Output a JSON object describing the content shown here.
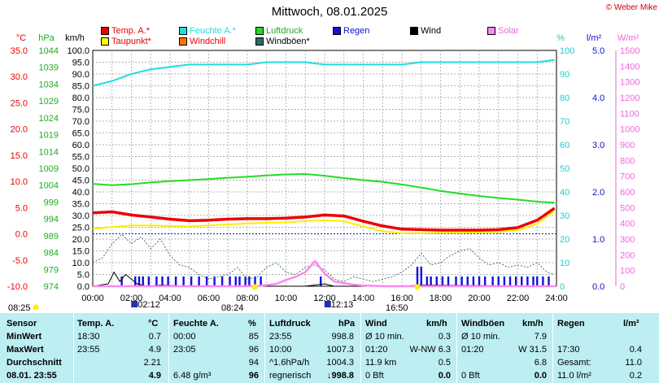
{
  "title": "Mittwoch, 08.01.2025",
  "brand": "© Weber Mike",
  "legend": [
    {
      "label": "Temp. A.*",
      "color": "#ee0000",
      "text_color": "#ee0000"
    },
    {
      "label": "Feuchte A.*",
      "color": "#22dddd",
      "text_color": "#22dddd"
    },
    {
      "label": "Luftdruck",
      "color": "#22dd22",
      "text_color": "#22aa22"
    },
    {
      "label": "Regen",
      "color": "#1111dd",
      "text_color": "#1111cc"
    },
    {
      "label": "Wind",
      "color": "#000000",
      "text_color": "#000000"
    },
    {
      "label": "Solar",
      "color": "#ff88ee",
      "text_color": "#ee66dd"
    },
    {
      "label": "Taupunkt*",
      "color": "#ffff00",
      "text_color": "#ee0000"
    },
    {
      "label": "Windchill",
      "color": "#ff7700",
      "text_color": "#ee0000"
    },
    {
      "label": "Windböen*",
      "color": "#336666",
      "text_color": "#000000"
    }
  ],
  "axis_units": {
    "temp": "°C",
    "pressure": "hPa",
    "wind": "km/h",
    "humidity": "%",
    "rain": "l/m²",
    "solar": "W/m²"
  },
  "chart_data": {
    "type": "line",
    "x_ticks": [
      "00:00",
      "02:00",
      "04:00",
      "06:00",
      "08:00",
      "10:00",
      "12:00",
      "14:00",
      "16:00",
      "18:00",
      "20:00",
      "22:00",
      "24:00"
    ],
    "temp_axis": {
      "range": [
        -10,
        35
      ],
      "ticks": [
        "35.0",
        "30.0",
        "25.0",
        "20.0",
        "15.0",
        "10.0",
        "5.0",
        "0.0",
        "-5.0",
        "-10.0"
      ]
    },
    "pressure_axis": {
      "range": [
        974,
        1044
      ],
      "ticks": [
        "1044",
        "1039",
        "1034",
        "1029",
        "1024",
        "1019",
        "1014",
        "1009",
        "1004",
        "999",
        "994",
        "989",
        "984",
        "979",
        "974"
      ]
    },
    "wind_axis": {
      "range": [
        0,
        100
      ],
      "ticks": [
        "100.0",
        "95.0",
        "90.0",
        "85.0",
        "80.0",
        "75.0",
        "70.0",
        "65.0",
        "60.0",
        "55.0",
        "50.0",
        "45.0",
        "40.0",
        "35.0",
        "30.0",
        "25.0",
        "20.0",
        "15.0",
        "10.0",
        "5.0",
        "0.0"
      ]
    },
    "humidity_axis": {
      "range": [
        0,
        100
      ],
      "ticks": [
        "100",
        "90",
        "80",
        "70",
        "60",
        "50",
        "40",
        "30",
        "20",
        "10",
        "0"
      ]
    },
    "rain_axis": {
      "range": [
        0,
        5
      ],
      "ticks": [
        "5.0",
        "4.0",
        "3.0",
        "2.0",
        "1.0",
        "0.0"
      ]
    },
    "solar_axis": {
      "range": [
        0,
        1500
      ],
      "ticks": [
        "1500",
        "1400",
        "1300",
        "1200",
        "1100",
        "1000",
        "900",
        "800",
        "700",
        "600",
        "500",
        "400",
        "300",
        "200",
        "100",
        "0"
      ]
    },
    "series": [
      {
        "name": "Temp. A.*",
        "axis": "temp",
        "points": [
          [
            0,
            4.0
          ],
          [
            1,
            4.2
          ],
          [
            2,
            3.6
          ],
          [
            3,
            3.2
          ],
          [
            4,
            2.8
          ],
          [
            5,
            2.5
          ],
          [
            6,
            2.6
          ],
          [
            7,
            2.8
          ],
          [
            8,
            2.9
          ],
          [
            9,
            2.9
          ],
          [
            10,
            3.0
          ],
          [
            11,
            3.2
          ],
          [
            12,
            3.6
          ],
          [
            13,
            3.4
          ],
          [
            14,
            2.4
          ],
          [
            15,
            1.5
          ],
          [
            16,
            0.9
          ],
          [
            17,
            0.8
          ],
          [
            18,
            0.7
          ],
          [
            19,
            0.7
          ],
          [
            20,
            0.7
          ],
          [
            21,
            0.8
          ],
          [
            22,
            1.2
          ],
          [
            23,
            2.6
          ],
          [
            23.9,
            4.9
          ]
        ]
      },
      {
        "name": "Taupunkt*",
        "axis": "temp",
        "points": [
          [
            0,
            1.0
          ],
          [
            1,
            1.3
          ],
          [
            2,
            1.6
          ],
          [
            3,
            1.6
          ],
          [
            4,
            1.5
          ],
          [
            5,
            1.4
          ],
          [
            6,
            1.6
          ],
          [
            7,
            1.8
          ],
          [
            8,
            2.0
          ],
          [
            9,
            2.1
          ],
          [
            10,
            2.2
          ],
          [
            11,
            2.4
          ],
          [
            12,
            2.6
          ],
          [
            13,
            2.4
          ],
          [
            14,
            1.4
          ],
          [
            15,
            0.5
          ],
          [
            16,
            0.1
          ],
          [
            17,
            0.1
          ],
          [
            18,
            0.2
          ],
          [
            19,
            0.2
          ],
          [
            20,
            0.3
          ],
          [
            21,
            0.4
          ],
          [
            22,
            0.7
          ],
          [
            23,
            1.9
          ],
          [
            23.9,
            4.4
          ]
        ]
      },
      {
        "name": "Feuchte A.*",
        "axis": "humidity",
        "points": [
          [
            0,
            85
          ],
          [
            1,
            87
          ],
          [
            2,
            90
          ],
          [
            3,
            92
          ],
          [
            4,
            93
          ],
          [
            5,
            94
          ],
          [
            6,
            94
          ],
          [
            7,
            94
          ],
          [
            8,
            94
          ],
          [
            9,
            95
          ],
          [
            10,
            95
          ],
          [
            11,
            95
          ],
          [
            12,
            94
          ],
          [
            13,
            94
          ],
          [
            14,
            94
          ],
          [
            15,
            94
          ],
          [
            16,
            94
          ],
          [
            17,
            95
          ],
          [
            18,
            95
          ],
          [
            19,
            95
          ],
          [
            20,
            95
          ],
          [
            21,
            95
          ],
          [
            22,
            95
          ],
          [
            23,
            95
          ],
          [
            23.9,
            96
          ]
        ]
      },
      {
        "name": "Luftdruck",
        "axis": "pressure",
        "points": [
          [
            0,
            1004.4
          ],
          [
            1,
            1004.0
          ],
          [
            2,
            1004.3
          ],
          [
            3,
            1004.8
          ],
          [
            4,
            1005.2
          ],
          [
            5,
            1005.5
          ],
          [
            6,
            1005.8
          ],
          [
            7,
            1006.2
          ],
          [
            8,
            1006.5
          ],
          [
            9,
            1006.9
          ],
          [
            10,
            1007.2
          ],
          [
            11,
            1007.3
          ],
          [
            12,
            1006.8
          ],
          [
            13,
            1006.1
          ],
          [
            14,
            1005.5
          ],
          [
            15,
            1005.0
          ],
          [
            16,
            1004.2
          ],
          [
            17,
            1003.3
          ],
          [
            18,
            1002.3
          ],
          [
            19,
            1001.5
          ],
          [
            20,
            1000.8
          ],
          [
            21,
            1000.2
          ],
          [
            22,
            999.7
          ],
          [
            23,
            999.1
          ],
          [
            23.9,
            998.8
          ]
        ]
      },
      {
        "name": "Windböen*",
        "axis": "wind",
        "points": [
          [
            0,
            10
          ],
          [
            0.5,
            12
          ],
          [
            1,
            18
          ],
          [
            1.5,
            22
          ],
          [
            2,
            18
          ],
          [
            2.5,
            21
          ],
          [
            3,
            16
          ],
          [
            3.5,
            20
          ],
          [
            4,
            13
          ],
          [
            4.5,
            9
          ],
          [
            5,
            8
          ],
          [
            5.5,
            5
          ],
          [
            6,
            3
          ],
          [
            6.5,
            4
          ],
          [
            7,
            5
          ],
          [
            7.5,
            8
          ],
          [
            8,
            3
          ],
          [
            8.5,
            4
          ],
          [
            9,
            8
          ],
          [
            9.5,
            10
          ],
          [
            10,
            6
          ],
          [
            10.5,
            5
          ],
          [
            11,
            8
          ],
          [
            11.5,
            9
          ],
          [
            12,
            7
          ],
          [
            12.5,
            3
          ],
          [
            13,
            2
          ],
          [
            13.5,
            4
          ],
          [
            14,
            3
          ],
          [
            14.5,
            2
          ],
          [
            15,
            3
          ],
          [
            15.5,
            4
          ],
          [
            16,
            6
          ],
          [
            16.5,
            9
          ],
          [
            17,
            14
          ],
          [
            17.5,
            9
          ],
          [
            18,
            10
          ],
          [
            18.5,
            13
          ],
          [
            19,
            15
          ],
          [
            19.5,
            16
          ],
          [
            20,
            12
          ],
          [
            20.5,
            9
          ],
          [
            21,
            10
          ],
          [
            21.5,
            8
          ],
          [
            22,
            9
          ],
          [
            22.5,
            8
          ],
          [
            23,
            10
          ],
          [
            23.5,
            6
          ],
          [
            23.9,
            5
          ]
        ]
      },
      {
        "name": "Wind",
        "axis": "wind",
        "points": [
          [
            0,
            0
          ],
          [
            0.8,
            1
          ],
          [
            1.1,
            6
          ],
          [
            1.4,
            2
          ],
          [
            1.7,
            5
          ],
          [
            2,
            3
          ],
          [
            2.3,
            1
          ],
          [
            2.8,
            0
          ],
          [
            3.5,
            0.5
          ],
          [
            5,
            0
          ],
          [
            8,
            0
          ],
          [
            11,
            0
          ],
          [
            12,
            1
          ],
          [
            12.5,
            0
          ],
          [
            16,
            0
          ],
          [
            17,
            0.5
          ],
          [
            24,
            0
          ]
        ]
      },
      {
        "name": "Solar",
        "axis": "solar",
        "points": [
          [
            0,
            0
          ],
          [
            8.5,
            0
          ],
          [
            9.5,
            15
          ],
          [
            10,
            40
          ],
          [
            10.5,
            60
          ],
          [
            11,
            90
          ],
          [
            11.5,
            160
          ],
          [
            12,
            80
          ],
          [
            12.5,
            30
          ],
          [
            13,
            20
          ],
          [
            13.5,
            10
          ],
          [
            14,
            5
          ],
          [
            15,
            0
          ],
          [
            24,
            0
          ]
        ]
      }
    ],
    "rain_hours": [
      1.5,
      2.2,
      2.4,
      2.6,
      2.9,
      3.3,
      3.6,
      3.9,
      4.3,
      4.7,
      5.1,
      5.5,
      5.9,
      6.3,
      6.7,
      7.1,
      7.4,
      7.6,
      7.9,
      8.1,
      8.4,
      8.7,
      11.8,
      16.8,
      17.0,
      17.3,
      17.5,
      17.8,
      18.1,
      18.4,
      18.8,
      19.1,
      19.4,
      19.7,
      20.0,
      20.3,
      20.7,
      21.0,
      21.3,
      21.6,
      21.9,
      22.2,
      22.5,
      22.8,
      23.0,
      23.3,
      23.6
    ]
  },
  "sun_marks": [
    {
      "label": "08:25",
      "kind": "sunrise"
    },
    {
      "label": "02:12",
      "kind": "moon"
    },
    {
      "label": "08:24",
      "kind": "sunrise"
    },
    {
      "label": "12:13",
      "kind": "moon"
    },
    {
      "label": "16:50",
      "kind": "sunset"
    }
  ],
  "table": {
    "header": [
      "Sensor",
      "Temp. A.",
      "°C",
      "Feuchte A.",
      "%",
      "Luftdruck",
      "hPa",
      "Wind",
      "km/h",
      "Windböen",
      "km/h",
      "Regen",
      "l/m²"
    ],
    "rows": [
      {
        "label": "MinWert",
        "temp_time": "18:30",
        "temp": "0.7",
        "hum_time": "00:00",
        "hum": "85",
        "press_time": "23:55",
        "press": "998.8",
        "wind_label": "Ø 10 min.",
        "wind": "0.3",
        "gust_label": "Ø 10 min.",
        "gust": "7.9",
        "rain_label": "",
        "rain": ""
      },
      {
        "label": "MaxWert",
        "temp_time": "23:55",
        "temp": "4.9",
        "hum_time": "23:05",
        "hum": "96",
        "press_time": "10:00",
        "press": "1007.3",
        "wind_label": "01:20",
        "wind": "W-NW 6.3",
        "gust_label": "01:20",
        "gust": "W 31.5",
        "rain_label": "17:30",
        "rain": "0.4"
      },
      {
        "label": "Durchschnitt",
        "temp_time": "",
        "temp": "2.21",
        "hum_time": "",
        "hum": "94",
        "press_time": "^1.6hPa/h",
        "press": "1004.3",
        "wind_label": "11.9 km",
        "wind": "0.5",
        "gust_label": "",
        "gust": "6.8",
        "rain_label": "Gesamt:",
        "rain": "11.0"
      },
      {
        "label": "08.01. 23:55",
        "temp_time": "",
        "temp": "4.9",
        "hum_time": "6.48 g/m³",
        "hum": "96",
        "press_time": "regnerisch",
        "press": "↓998.8",
        "wind_label": "0 Bft",
        "wind": "0.0",
        "gust_label": "0 Bft",
        "gust": "0.0",
        "rain_label": "11.0 l/m²",
        "rain": "0.2"
      }
    ]
  }
}
